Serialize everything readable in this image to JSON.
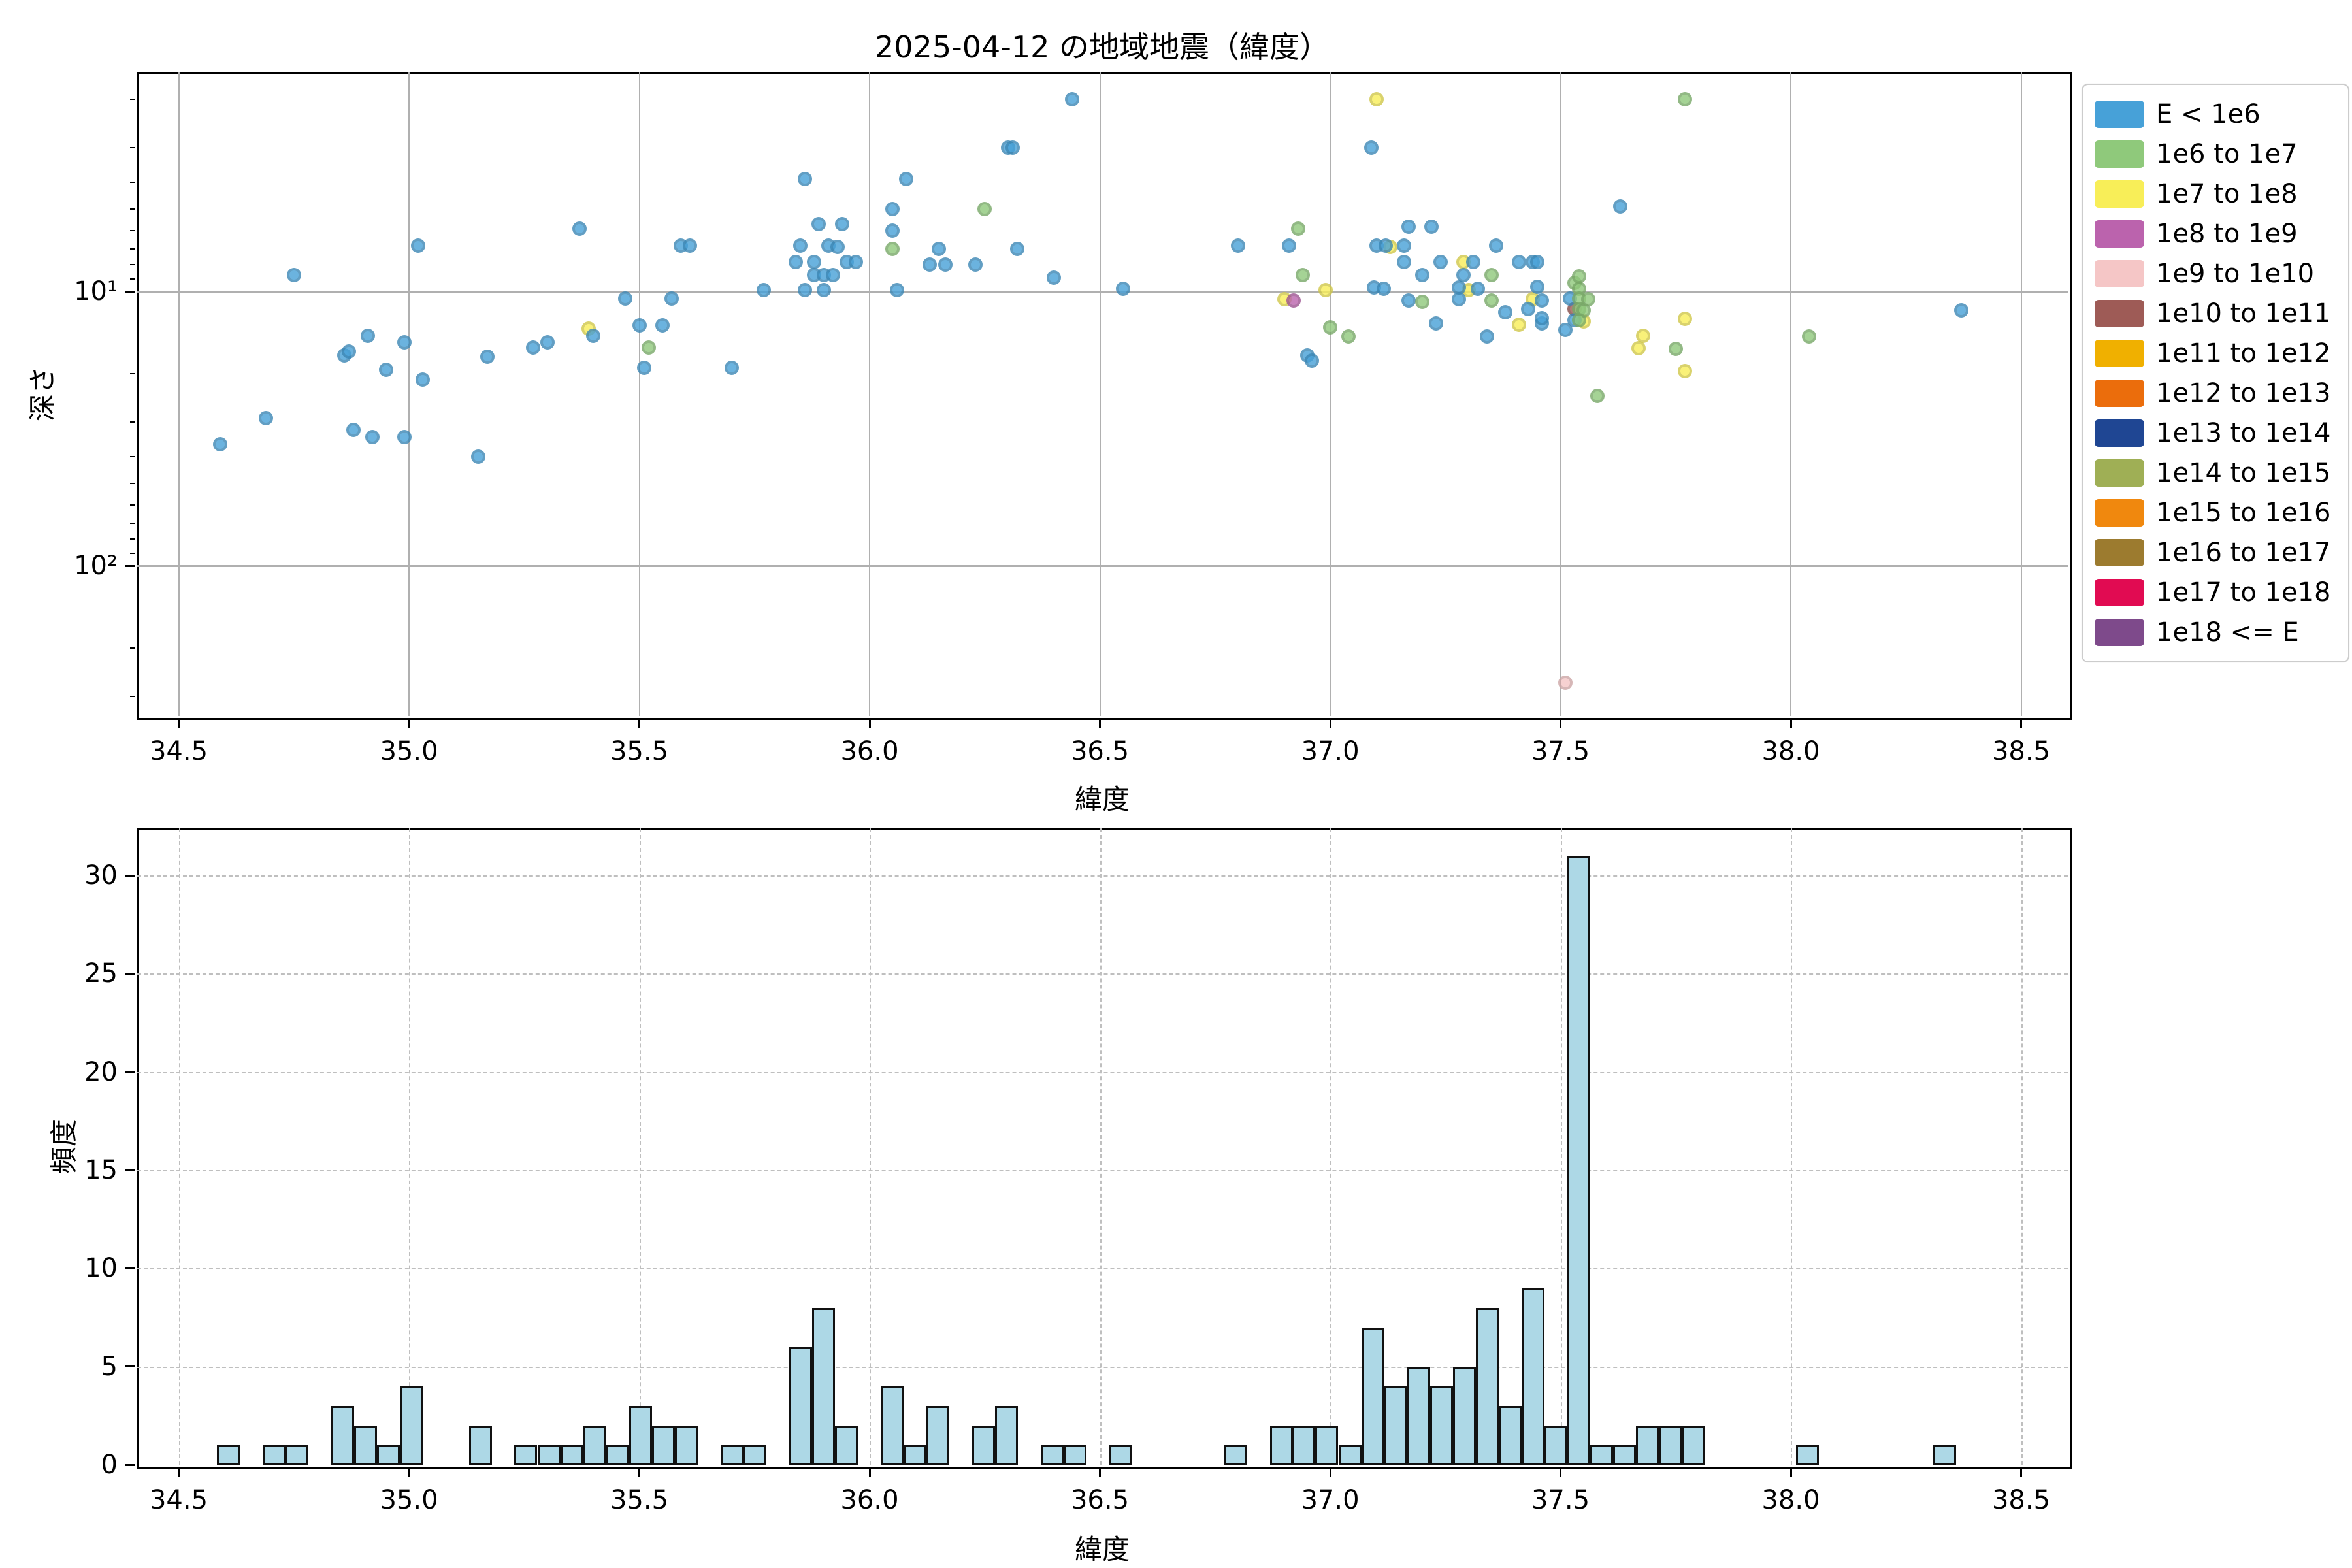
{
  "title": "2025-04-12 の地域地震（緯度）",
  "chart_data": [
    {
      "type": "scatter",
      "title": "2025-04-12 の地域地震（緯度）",
      "xlabel": "緯度",
      "ylabel": "深さ",
      "x_ticks": [
        34.5,
        35.0,
        35.5,
        36.0,
        36.5,
        37.0,
        37.5,
        38.0,
        38.5
      ],
      "xlim": [
        34.41,
        38.6
      ],
      "y_scale": "log-inverted",
      "y_tick_labels": [
        "10¹",
        "10²"
      ],
      "y_tick_values": [
        10,
        100
      ],
      "y_minor_ticks": [
        2,
        3,
        4,
        5,
        6,
        7,
        8,
        9,
        20,
        30,
        40,
        50,
        60,
        70,
        80,
        90,
        200,
        300
      ],
      "ylim_depth": [
        1.585,
        353
      ],
      "grid": "solid",
      "legend_position": "outside-right",
      "legend": [
        {
          "label": "E < 1e6",
          "color": "#47A1D8"
        },
        {
          "label": "1e6 to 1e7",
          "color": "#8FC97B"
        },
        {
          "label": "1e7 to 1e8",
          "color": "#F8EE58"
        },
        {
          "label": "1e8 to 1e9",
          "color": "#BB63AD"
        },
        {
          "label": "1e9 to 1e10",
          "color": "#F5C6C6"
        },
        {
          "label": "1e10 to 1e11",
          "color": "#9E5B56"
        },
        {
          "label": "1e11 to 1e12",
          "color": "#F0B000"
        },
        {
          "label": "1e12 to 1e13",
          "color": "#EB6D0C"
        },
        {
          "label": "1e13 to 1e14",
          "color": "#1F4693"
        },
        {
          "label": "1e14 to 1e15",
          "color": "#9FAF55"
        },
        {
          "label": "1e15 to 1e16",
          "color": "#F0880E"
        },
        {
          "label": "1e16 to 1e17",
          "color": "#9C7B2F"
        },
        {
          "label": "1e17 to 1e18",
          "color": "#E10B52"
        },
        {
          "label": "1e18 <= E",
          "color": "#7E4A8B"
        }
      ],
      "draw_order": [
        4,
        2,
        5,
        0,
        3,
        1
      ],
      "series": [
        {
          "name": "E < 1e6",
          "color": "#47A1D8",
          "points": [
            [
              34.59,
              36
            ],
            [
              34.69,
              29
            ],
            [
              34.75,
              8.7
            ],
            [
              34.86,
              17.1
            ],
            [
              34.87,
              16.6
            ],
            [
              34.88,
              32
            ],
            [
              34.91,
              14.5
            ],
            [
              34.92,
              34
            ],
            [
              34.95,
              19.3
            ],
            [
              34.99,
              15.3
            ],
            [
              34.99,
              34
            ],
            [
              35.02,
              6.8
            ],
            [
              35.03,
              21
            ],
            [
              35.15,
              40
            ],
            [
              35.17,
              17.3
            ],
            [
              35.27,
              16.0
            ],
            [
              35.3,
              15.3
            ],
            [
              35.37,
              5.9
            ],
            [
              35.4,
              14.5
            ],
            [
              35.47,
              10.6
            ],
            [
              35.5,
              13.3
            ],
            [
              35.51,
              19.0
            ],
            [
              35.55,
              13.3
            ],
            [
              35.57,
              10.6
            ],
            [
              35.59,
              6.8
            ],
            [
              35.61,
              6.8
            ],
            [
              35.7,
              19.0
            ],
            [
              35.77,
              9.9
            ],
            [
              35.84,
              7.8
            ],
            [
              35.85,
              6.8
            ],
            [
              35.86,
              3.9
            ],
            [
              35.86,
              9.9
            ],
            [
              35.88,
              7.8
            ],
            [
              35.88,
              8.7
            ],
            [
              35.89,
              5.7
            ],
            [
              35.9,
              8.7
            ],
            [
              35.9,
              9.9
            ],
            [
              35.91,
              6.8
            ],
            [
              35.92,
              8.7
            ],
            [
              35.93,
              6.9
            ],
            [
              35.94,
              5.7
            ],
            [
              35.95,
              7.8
            ],
            [
              35.97,
              7.8
            ],
            [
              36.05,
              5.0
            ],
            [
              36.05,
              6.0
            ],
            [
              36.06,
              9.9
            ],
            [
              36.08,
              3.9
            ],
            [
              36.13,
              8.0
            ],
            [
              36.15,
              7.0
            ],
            [
              36.165,
              8.0
            ],
            [
              36.23,
              8.0
            ],
            [
              36.3,
              3.0
            ],
            [
              36.31,
              3.0
            ],
            [
              36.32,
              7.0
            ],
            [
              36.4,
              8.9
            ],
            [
              36.44,
              2.0
            ],
            [
              36.55,
              9.8
            ],
            [
              36.8,
              6.8
            ],
            [
              36.91,
              6.8
            ],
            [
              36.95,
              17.1
            ],
            [
              36.96,
              17.9
            ],
            [
              37.09,
              3.0
            ],
            [
              37.095,
              9.7
            ],
            [
              37.1,
              6.8
            ],
            [
              37.117,
              9.8
            ],
            [
              37.12,
              6.8
            ],
            [
              37.16,
              6.8
            ],
            [
              37.16,
              7.8
            ],
            [
              37.17,
              5.8
            ],
            [
              37.17,
              10.8
            ],
            [
              37.2,
              8.7
            ],
            [
              37.22,
              5.8
            ],
            [
              37.23,
              13.1
            ],
            [
              37.24,
              7.8
            ],
            [
              37.28,
              9.7
            ],
            [
              37.28,
              10.7
            ],
            [
              37.29,
              8.7
            ],
            [
              37.31,
              7.8
            ],
            [
              37.32,
              9.8
            ],
            [
              37.34,
              14.6
            ],
            [
              37.36,
              6.8
            ],
            [
              37.38,
              11.9
            ],
            [
              37.41,
              7.8
            ],
            [
              37.43,
              11.6
            ],
            [
              37.44,
              7.8
            ],
            [
              37.45,
              7.8
            ],
            [
              37.45,
              9.6
            ],
            [
              37.46,
              13.1
            ],
            [
              37.46,
              10.8
            ],
            [
              37.46,
              12.5
            ],
            [
              37.51,
              13.8
            ],
            [
              37.52,
              10.6
            ],
            [
              37.53,
              12.7
            ],
            [
              37.63,
              4.9
            ],
            [
              38.37,
              11.7
            ]
          ]
        },
        {
          "name": "1e6 to 1e7",
          "color": "#8FC97B",
          "points": [
            [
              35.52,
              16.0
            ],
            [
              36.05,
              7.0
            ],
            [
              36.25,
              5.0
            ],
            [
              36.93,
              5.9
            ],
            [
              36.94,
              8.7
            ],
            [
              37.0,
              13.5
            ],
            [
              37.04,
              14.6
            ],
            [
              37.2,
              10.9
            ],
            [
              37.35,
              8.7
            ],
            [
              37.35,
              10.8
            ],
            [
              37.53,
              9.3
            ],
            [
              37.54,
              8.8
            ],
            [
              37.54,
              9.8
            ],
            [
              37.54,
              10.6
            ],
            [
              37.56,
              10.7
            ],
            [
              37.54,
              11.6
            ],
            [
              37.55,
              11.7
            ],
            [
              37.54,
              12.7
            ],
            [
              37.58,
              24
            ],
            [
              37.75,
              16.2
            ],
            [
              37.77,
              2.0
            ],
            [
              38.04,
              14.6
            ]
          ]
        },
        {
          "name": "1e7 to 1e8",
          "color": "#F8EE58",
          "points": [
            [
              35.39,
              13.7
            ],
            [
              36.9,
              10.7
            ],
            [
              36.99,
              9.9
            ],
            [
              37.1,
              2.0
            ],
            [
              37.13,
              6.9
            ],
            [
              37.29,
              7.8
            ],
            [
              37.3,
              9.9
            ],
            [
              37.41,
              13.2
            ],
            [
              37.44,
              10.7
            ],
            [
              37.55,
              12.9
            ],
            [
              37.67,
              16.1
            ],
            [
              37.68,
              14.5
            ],
            [
              37.77,
              12.6
            ],
            [
              37.77,
              19.5
            ]
          ]
        },
        {
          "name": "1e8 to 1e9",
          "color": "#BB63AD",
          "points": [
            [
              36.92,
              10.8
            ]
          ]
        },
        {
          "name": "1e9 to 1e10",
          "color": "#F5C6C6",
          "points": [
            [
              37.51,
              267
            ]
          ]
        },
        {
          "name": "1e10 to 1e11",
          "color": "#9E5B56",
          "points": [
            [
              37.53,
              11.6
            ]
          ]
        },
        {
          "name": "1e11 to 1e12",
          "color": "#F0B000",
          "points": []
        },
        {
          "name": "1e12 to 1e13",
          "color": "#EB6D0C",
          "points": []
        },
        {
          "name": "1e13 to 1e14",
          "color": "#1F4693",
          "points": []
        },
        {
          "name": "1e14 to 1e15",
          "color": "#9FAF55",
          "points": []
        },
        {
          "name": "1e15 to 1e16",
          "color": "#F0880E",
          "points": []
        },
        {
          "name": "1e16 to 1e17",
          "color": "#9C7B2F",
          "points": []
        },
        {
          "name": "1e17 to 1e18",
          "color": "#E10B52",
          "points": []
        },
        {
          "name": "1e18 <= E",
          "color": "#7E4A8B",
          "points": []
        }
      ]
    },
    {
      "type": "histogram",
      "xlabel": "緯度",
      "ylabel": "頻度",
      "x_ticks": [
        34.5,
        35.0,
        35.5,
        36.0,
        36.5,
        37.0,
        37.5,
        38.0,
        38.5
      ],
      "y_ticks": [
        0,
        5,
        10,
        15,
        20,
        25,
        30
      ],
      "ylim": [
        0,
        32.4
      ],
      "grid": "dashed",
      "bar_color": "#ADD8E6",
      "edge_color": "#111111",
      "bin_width": 0.0497,
      "bars": [
        {
          "x": 34.583,
          "n": 1
        },
        {
          "x": 34.682,
          "n": 1
        },
        {
          "x": 34.732,
          "n": 1
        },
        {
          "x": 34.831,
          "n": 3
        },
        {
          "x": 34.881,
          "n": 2
        },
        {
          "x": 34.931,
          "n": 1
        },
        {
          "x": 34.981,
          "n": 4
        },
        {
          "x": 35.13,
          "n": 2
        },
        {
          "x": 35.229,
          "n": 1
        },
        {
          "x": 35.279,
          "n": 1
        },
        {
          "x": 35.329,
          "n": 1
        },
        {
          "x": 35.378,
          "n": 2
        },
        {
          "x": 35.428,
          "n": 1
        },
        {
          "x": 35.478,
          "n": 3
        },
        {
          "x": 35.527,
          "n": 2
        },
        {
          "x": 35.577,
          "n": 2
        },
        {
          "x": 35.676,
          "n": 1
        },
        {
          "x": 35.726,
          "n": 1
        },
        {
          "x": 35.825,
          "n": 6
        },
        {
          "x": 35.875,
          "n": 8
        },
        {
          "x": 35.925,
          "n": 2
        },
        {
          "x": 36.024,
          "n": 4
        },
        {
          "x": 36.074,
          "n": 1
        },
        {
          "x": 36.123,
          "n": 3
        },
        {
          "x": 36.223,
          "n": 2
        },
        {
          "x": 36.272,
          "n": 3
        },
        {
          "x": 36.372,
          "n": 1
        },
        {
          "x": 36.421,
          "n": 1
        },
        {
          "x": 36.521,
          "n": 1
        },
        {
          "x": 36.769,
          "n": 1
        },
        {
          "x": 36.869,
          "n": 2
        },
        {
          "x": 36.918,
          "n": 2
        },
        {
          "x": 36.968,
          "n": 2
        },
        {
          "x": 37.018,
          "n": 1
        },
        {
          "x": 37.068,
          "n": 7
        },
        {
          "x": 37.117,
          "n": 4
        },
        {
          "x": 37.167,
          "n": 5
        },
        {
          "x": 37.217,
          "n": 4
        },
        {
          "x": 37.266,
          "n": 5
        },
        {
          "x": 37.316,
          "n": 8
        },
        {
          "x": 37.366,
          "n": 3
        },
        {
          "x": 37.415,
          "n": 9
        },
        {
          "x": 37.465,
          "n": 2
        },
        {
          "x": 37.515,
          "n": 31
        },
        {
          "x": 37.564,
          "n": 1
        },
        {
          "x": 37.614,
          "n": 1
        },
        {
          "x": 37.664,
          "n": 2
        },
        {
          "x": 37.713,
          "n": 2
        },
        {
          "x": 37.763,
          "n": 2
        },
        {
          "x": 38.011,
          "n": 1
        },
        {
          "x": 38.309,
          "n": 1
        }
      ]
    }
  ]
}
